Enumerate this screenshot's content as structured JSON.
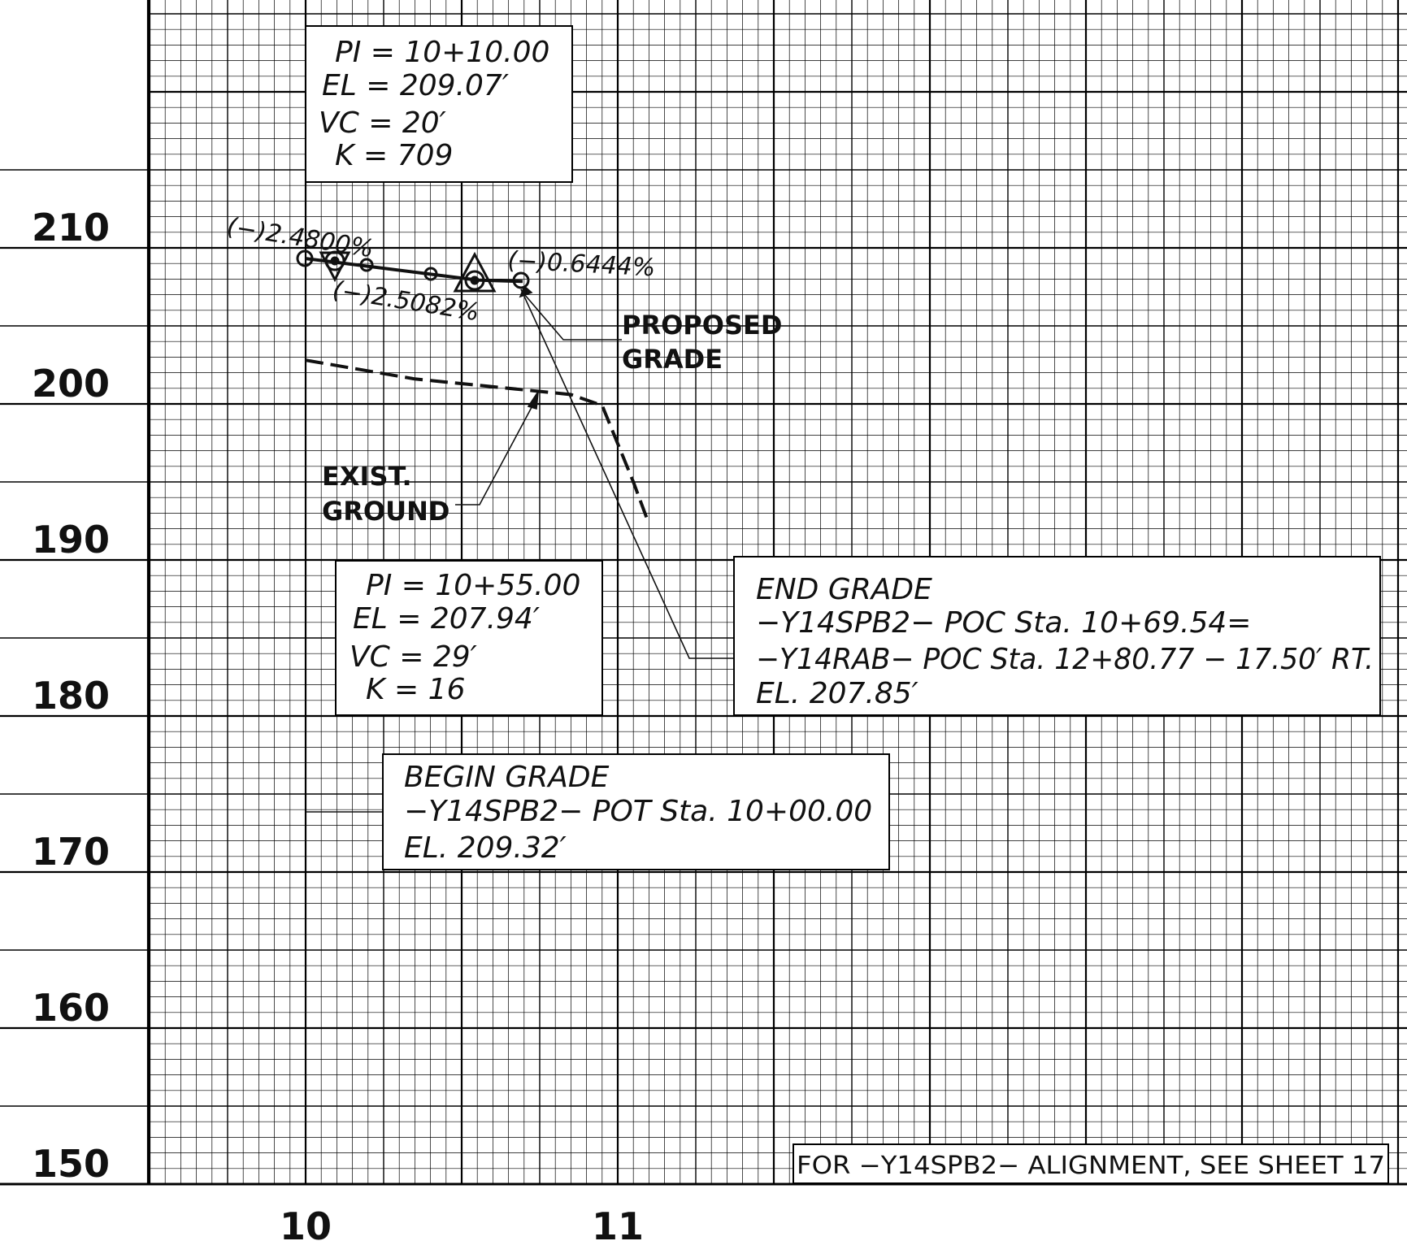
{
  "y_axis": {
    "labels": [
      "210",
      "200",
      "190",
      "180",
      "170",
      "160",
      "150"
    ],
    "values": [
      210,
      200,
      190,
      180,
      170,
      160,
      150
    ]
  },
  "x_axis": {
    "labels": [
      "10",
      "11"
    ],
    "values": [
      10,
      11
    ]
  },
  "proposed_grade": {
    "label_line1": "PROPOSED",
    "label_line2": "GRADE",
    "points": [
      {
        "station": 10.0,
        "elevation": 209.32
      },
      {
        "station": 10.1,
        "elevation": 209.07
      },
      {
        "station": 10.55,
        "elevation": 207.94
      },
      {
        "station": 10.6954,
        "elevation": 207.85
      }
    ],
    "grade_1": "(−)2.4800%",
    "grade_2": "(−)2.5082%",
    "grade_3": "(−)0.6444%"
  },
  "existing_ground": {
    "label_line1": "EXIST.",
    "label_line2": "GROUND",
    "points": [
      {
        "station": 10.0,
        "elevation": 202.8
      },
      {
        "station": 10.35,
        "elevation": 201.6
      },
      {
        "station": 10.75,
        "elevation": 200.8
      },
      {
        "station": 10.85,
        "elevation": 200.6
      },
      {
        "station": 10.95,
        "elevation": 199.9
      },
      {
        "station": 11.05,
        "elevation": 195.0
      },
      {
        "station": 11.1,
        "elevation": 192.3
      }
    ]
  },
  "pvi_1": {
    "line1": "PI = 10+10.00",
    "line2": "EL = 209.07′",
    "line3": "VC = 20′",
    "line4": "K = 709"
  },
  "pvi_2": {
    "line1": "PI = 10+55.00",
    "line2": "EL = 207.94′",
    "line3": "VC = 29′",
    "line4": "K = 16"
  },
  "end_grade": {
    "line1": "END GRADE",
    "line2": "−Y14SPB2− POC Sta. 10+69.54=",
    "line3": "−Y14RAB− POC Sta. 12+80.77 − 17.50′ RT.",
    "line4": "EL. 207.85′"
  },
  "begin_grade": {
    "line1": "BEGIN GRADE",
    "line2": "−Y14SPB2− POT Sta. 10+00.00",
    "line3": "EL. 209.32′"
  },
  "sheet_note": "FOR −Y14SPB2− ALIGNMENT, SEE SHEET 17"
}
